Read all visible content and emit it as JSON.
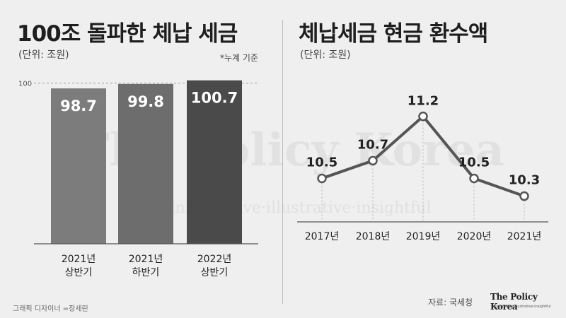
{
  "left_panel": {
    "title": "100조 돌파한 체납 세금",
    "unit": "(단위: 조원)",
    "note": "*누계 기준"
  },
  "right_panel": {
    "title": "체납세금 현금 환수액",
    "unit": "(단위: 조원)"
  },
  "watermark": {
    "main": "The Policy Korea",
    "sub": "informative·illustrative·insightful"
  },
  "footer": {
    "credit": "그래픽 디자이너 =장세린",
    "source": "자료: 국세청",
    "logo": "The Policy Korea",
    "logo_sub": "informative·illustrative·insightful"
  },
  "colors": {
    "bar1": "#7c7c7c",
    "bar2": "#6d6d6d",
    "bar3": "#4a4a4a",
    "line": "#555555",
    "background": "#efefef"
  },
  "chart_data": [
    {
      "type": "bar",
      "categories": [
        [
          "2021년",
          "상반기"
        ],
        [
          "2021년",
          "하반기"
        ],
        [
          "2022년",
          "상반기"
        ]
      ],
      "values": [
        98.7,
        99.8,
        100.7
      ],
      "value_labels": [
        "98.7",
        "99.8",
        "100.7"
      ],
      "reference_line": {
        "value": 100,
        "label": "100"
      }
    },
    {
      "type": "line",
      "x": [
        "2017년",
        "2018년",
        "2019년",
        "2020년",
        "2021년"
      ],
      "values": [
        10.5,
        10.7,
        11.2,
        10.5,
        10.3
      ],
      "value_labels": [
        "10.5",
        "10.7",
        "11.2",
        "10.5",
        "10.3"
      ]
    }
  ]
}
